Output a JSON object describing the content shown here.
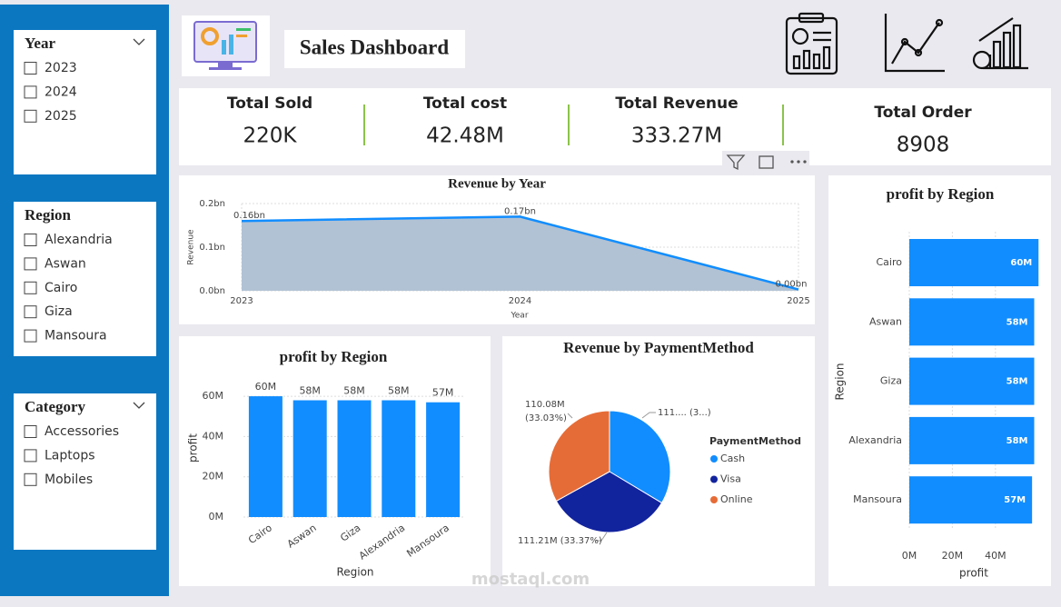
{
  "header": {
    "title": "Sales Dashboard"
  },
  "slicers": [
    {
      "title": "Year",
      "items": [
        "2023",
        "2024",
        "2025"
      ]
    },
    {
      "title": "Region",
      "items": [
        "Alexandria",
        "Aswan",
        "Cairo",
        "Giza",
        "Mansoura"
      ]
    },
    {
      "title": "Category",
      "items": [
        "Accessories",
        "Laptops",
        "Mobiles"
      ]
    }
  ],
  "kpis": [
    {
      "label": "Total Sold",
      "value": "220K"
    },
    {
      "label": "Total cost",
      "value": "42.48M"
    },
    {
      "label": "Total Revenue",
      "value": "333.27M"
    },
    {
      "label": "Total Order",
      "value": "8908"
    }
  ],
  "chart_data": [
    {
      "type": "area",
      "title": "Revenue by Year",
      "x_label": "Year",
      "y_label": "Revenue",
      "categories": [
        "2023",
        "2024",
        "2025"
      ],
      "values": [
        0.16,
        0.17,
        0.003
      ],
      "value_labels": [
        "0.16bn",
        "0.17bn",
        "0.00bn"
      ],
      "color": "#118DFF",
      "area_color": "#b1c2d4",
      "ylim": [
        0,
        0.2
      ],
      "yticks": [
        {
          "value": 0,
          "label": "0.0bn"
        },
        {
          "value": 0.1,
          "label": "0.1bn"
        },
        {
          "value": 0.2,
          "label": "0.2bn"
        }
      ],
      "grid": true
    },
    {
      "type": "bar",
      "title": "profit by Region",
      "x_label": "Region",
      "y_label": "profit",
      "categories": [
        "Cairo",
        "Aswan",
        "Giza",
        "Alexandria",
        "Mansoura"
      ],
      "values": [
        60,
        58,
        58,
        58,
        57
      ],
      "value_labels": [
        "60M",
        "58M",
        "58M",
        "58M",
        "57M"
      ],
      "color": "#118DFF",
      "ylim": [
        0,
        65
      ],
      "yticks": [
        {
          "value": 0,
          "label": "0M"
        },
        {
          "value": 20,
          "label": "20M"
        },
        {
          "value": 40,
          "label": "40M"
        },
        {
          "value": 60,
          "label": "60M"
        }
      ],
      "grid": true
    },
    {
      "type": "pie",
      "title": "Revenue by PaymentMethod",
      "legend_title": "PaymentMethod",
      "categories": [
        "Cash",
        "Visa",
        "Online"
      ],
      "values": [
        111.98,
        111.21,
        110.08
      ],
      "value_labels": [
        "111.... (3...)",
        "111.21M (33.37%)",
        "110.08M\n(33.03%)"
      ],
      "colors": [
        "#118DFF",
        "#12239E",
        "#E66C37"
      ],
      "legend": "right"
    },
    {
      "type": "hbar",
      "title": "profit by Region",
      "x_label": "profit",
      "y_label": "Region",
      "categories": [
        "Cairo",
        "Aswan",
        "Giza",
        "Alexandria",
        "Mansoura"
      ],
      "values": [
        60,
        58,
        58,
        58,
        57
      ],
      "value_labels": [
        "60M",
        "58M",
        "58M",
        "58M",
        "57M"
      ],
      "color": "#118DFF",
      "xlim": [
        0,
        62
      ],
      "xticks": [
        {
          "value": 0,
          "label": "0M"
        },
        {
          "value": 20,
          "label": "20M"
        },
        {
          "value": 40,
          "label": "40M"
        }
      ],
      "grid": true
    }
  ],
  "watermark": "mostaql.com"
}
